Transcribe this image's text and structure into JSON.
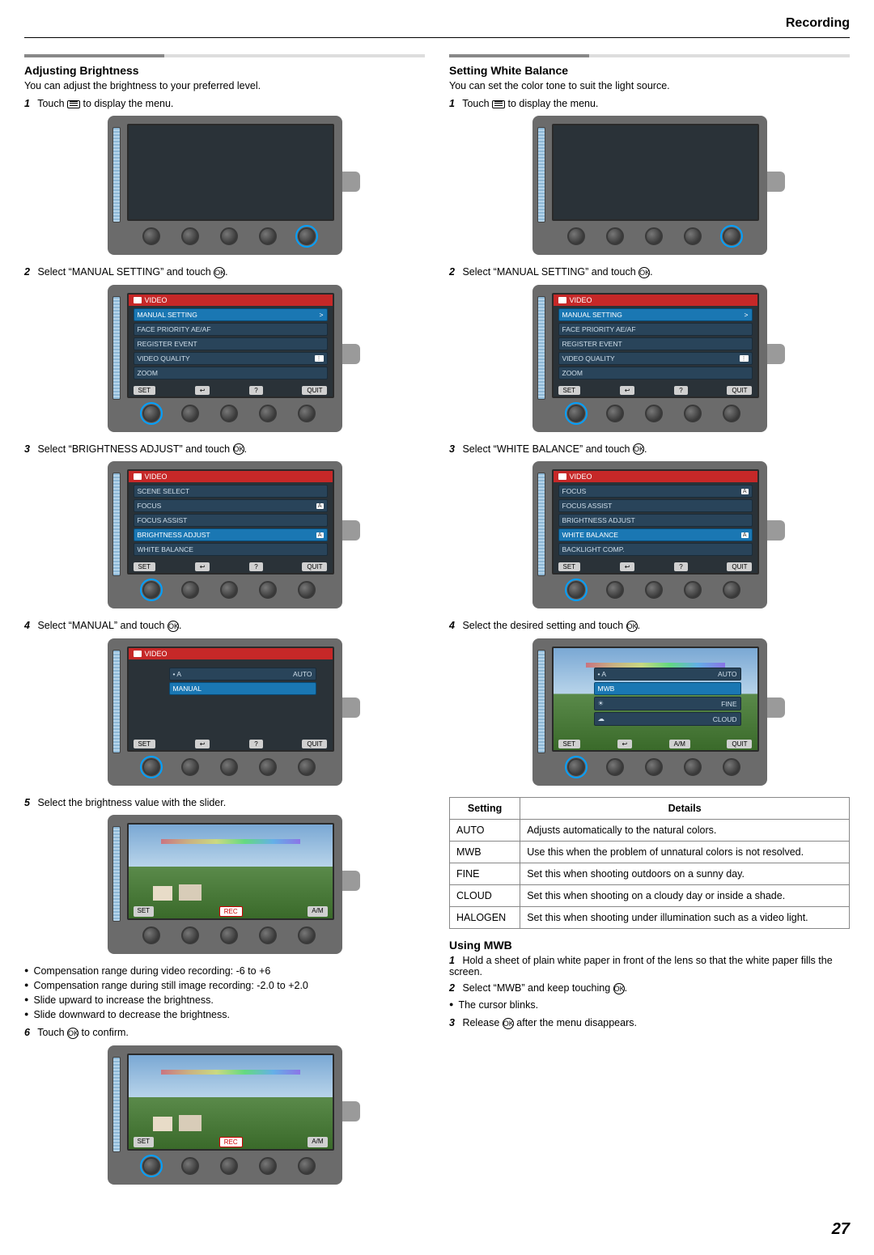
{
  "page": {
    "header": "Recording",
    "number": "27"
  },
  "left": {
    "title": "Adjusting Brightness",
    "intro": "You can adjust the brightness to your preferred level.",
    "step1": "Touch ",
    "step1_tail": " to display the menu.",
    "step2_pre": "Select “",
    "step2_item": "MANUAL SETTING",
    "step2_post": "” and touch ",
    "step3_pre": "Select “",
    "step3_item": "BRIGHTNESS ADJUST",
    "step3_post": "” and touch ",
    "step4_pre": "Select “",
    "step4_item": "MANUAL",
    "step4_post": "” and touch ",
    "step5": "Select the brightness value with the slider.",
    "bullet1": "Compensation range during video recording: -6 to +6",
    "bullet2": "Compensation range during still image recording: -2.0 to +2.0",
    "bullet3": "Slide upward to increase the brightness.",
    "bullet4": "Slide downward to decrease the brightness.",
    "step6_pre": "Touch ",
    "step6_post": " to confirm."
  },
  "right": {
    "title": "Setting White Balance",
    "intro": "You can set the color tone to suit the light source.",
    "step1": "Touch ",
    "step1_tail": " to display the menu.",
    "step2_pre": "Select “",
    "step2_item": "MANUAL SETTING",
    "step2_post": "” and touch ",
    "step3_pre": "Select “",
    "step3_item": "WHITE BALANCE",
    "step3_post": "” and touch ",
    "step4": "Select the desired setting and touch ",
    "table": {
      "col1": "Setting",
      "col2": "Details",
      "rows": [
        {
          "k": "AUTO",
          "v": "Adjusts automatically to the natural colors."
        },
        {
          "k": "MWB",
          "v": "Use this when the problem of unnatural colors is not resolved."
        },
        {
          "k": "FINE",
          "v": "Set this when shooting outdoors on a sunny day."
        },
        {
          "k": "CLOUD",
          "v": "Set this when shooting on a cloudy day or inside a shade."
        },
        {
          "k": "HALOGEN",
          "v": "Set this when shooting under illumination such as a video light."
        }
      ]
    },
    "mwb": {
      "title": "Using MWB",
      "step1": "Hold a sheet of plain white paper in front of the lens so that the white paper fills the screen.",
      "step2_pre": "Select “",
      "step2_item": "MWB",
      "step2_post": "” and keep touching ",
      "bullet": "The cursor blinks.",
      "step3_pre": "Release ",
      "step3_post": " after the menu disappears."
    }
  },
  "menus": {
    "video_hdr": "VIDEO",
    "manual": {
      "items": [
        "MANUAL SETTING",
        "FACE PRIORITY AE/AF",
        "REGISTER EVENT",
        "VIDEO QUALITY",
        "ZOOM"
      ],
      "sel": 0,
      "footer": [
        "SET",
        "↩",
        "?",
        "QUIT"
      ]
    },
    "brightness": {
      "items": [
        "SCENE SELECT",
        "FOCUS",
        "FOCUS ASSIST",
        "BRIGHTNESS ADJUST",
        "WHITE BALANCE"
      ],
      "sel": 3,
      "footer": [
        "SET",
        "↩",
        "?",
        "QUIT"
      ]
    },
    "wb": {
      "items": [
        "FOCUS",
        "FOCUS ASSIST",
        "BRIGHTNESS ADJUST",
        "WHITE BALANCE",
        "BACKLIGHT COMP."
      ],
      "sel": 3,
      "footer": [
        "SET",
        "↩",
        "?",
        "QUIT"
      ]
    },
    "auto_manual": {
      "items": [
        "AUTO",
        "MANUAL"
      ],
      "sel": 1,
      "footer": [
        "SET",
        "↩",
        "?",
        "QUIT"
      ]
    },
    "wb_opts": {
      "items": [
        "AUTO",
        "MWB",
        "FINE",
        "CLOUD"
      ],
      "sel": 1,
      "footer": [
        "SET",
        "↩",
        "A/M",
        "QUIT"
      ]
    },
    "rec_footer": [
      "SET",
      "REC",
      "A/M"
    ]
  },
  "icons": {
    "ok": "OK"
  },
  "colors": {
    "device_body": "#6b6b6b",
    "screen_bg": "#2a3238",
    "menu_header_bg": "#c62828",
    "menu_item_bg": "#29445a",
    "menu_item_sel_bg": "#1a77b3",
    "highlight_ring": "#00a0ff"
  }
}
